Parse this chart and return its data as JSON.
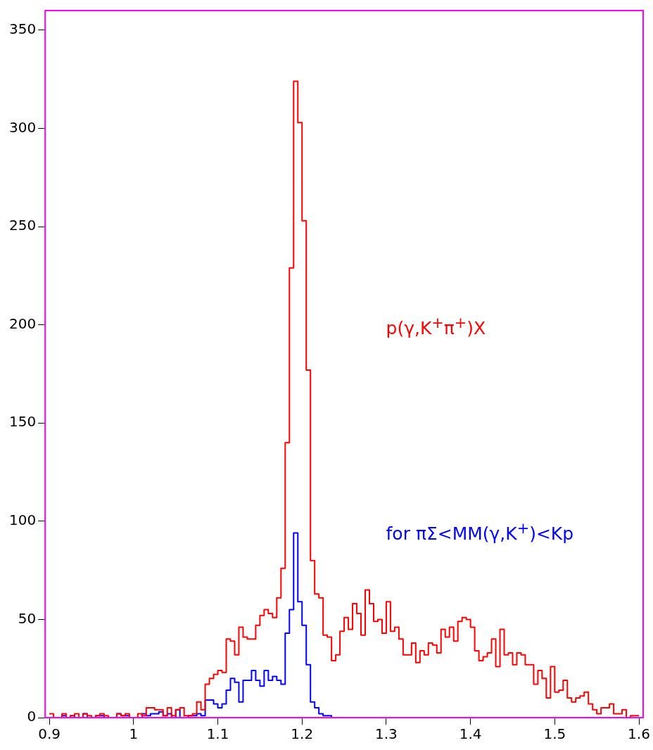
{
  "chart_data": {
    "type": "histogram",
    "bins": [
      0.9,
      0.905,
      0.91,
      0.915,
      0.92,
      0.925,
      0.93,
      0.935,
      0.94,
      0.945,
      0.95,
      0.955,
      0.96,
      0.965,
      0.97,
      0.975,
      0.98,
      0.985,
      0.99,
      0.995,
      1,
      1.005,
      1.01,
      1.015,
      1.02,
      1.025,
      1.03,
      1.035,
      1.04,
      1.045,
      1.05,
      1.055,
      1.06,
      1.065,
      1.07,
      1.075,
      1.08,
      1.085,
      1.09,
      1.095,
      1.1,
      1.105,
      1.11,
      1.115,
      1.12,
      1.125,
      1.13,
      1.135,
      1.14,
      1.145,
      1.15,
      1.155,
      1.16,
      1.165,
      1.17,
      1.175,
      1.18,
      1.185,
      1.19,
      1.195,
      1.2,
      1.205,
      1.21,
      1.215,
      1.22,
      1.225,
      1.23,
      1.235,
      1.24,
      1.245,
      1.25,
      1.255,
      1.26,
      1.265,
      1.27,
      1.275,
      1.28,
      1.285,
      1.29,
      1.295,
      1.3,
      1.305,
      1.31,
      1.315,
      1.32,
      1.325,
      1.33,
      1.335,
      1.34,
      1.345,
      1.35,
      1.355,
      1.36,
      1.365,
      1.37,
      1.375,
      1.38,
      1.385,
      1.39,
      1.395,
      1.4,
      1.405,
      1.41,
      1.415,
      1.42,
      1.425,
      1.43,
      1.435,
      1.44,
      1.445,
      1.45,
      1.455,
      1.46,
      1.465,
      1.47,
      1.475,
      1.48,
      1.485,
      1.49,
      1.495,
      1.5,
      1.505,
      1.51,
      1.515,
      1.52,
      1.525,
      1.53,
      1.535,
      1.54,
      1.545,
      1.55,
      1.555,
      1.56,
      1.565,
      1.57,
      1.575,
      1.58,
      1.585,
      1.59,
      1.595,
      1.6
    ],
    "series": [
      {
        "name": "p(γ,K$^{+}$π$^{+}$)X",
        "color": "#ff0000",
        "values": [
          2,
          0,
          0,
          2,
          0,
          1,
          2,
          0,
          2,
          1,
          0,
          1,
          2,
          1,
          0,
          0,
          2,
          1,
          2,
          0,
          0,
          2,
          1,
          5,
          5,
          4,
          4,
          1,
          5,
          1,
          4,
          5,
          1,
          1,
          2,
          8,
          4,
          17,
          20,
          22,
          24,
          23,
          40,
          39,
          32,
          46,
          41,
          40,
          40,
          47,
          52,
          55,
          53,
          51,
          61,
          76,
          140,
          229,
          324,
          303,
          253,
          177,
          80,
          63,
          61,
          42,
          41,
          29,
          32,
          44,
          51,
          45,
          58,
          53,
          42,
          65,
          58,
          49,
          50,
          43,
          59,
          44,
          46,
          40,
          32,
          32,
          38,
          28,
          34,
          32,
          38,
          37,
          33,
          45,
          41,
          46,
          39,
          49,
          51,
          50,
          46,
          34,
          29,
          31,
          33,
          40,
          26,
          45,
          32,
          33,
          27,
          33,
          32,
          27,
          27,
          17,
          24,
          20,
          10,
          26,
          13,
          14,
          19,
          10,
          8,
          10,
          11,
          13,
          7,
          4,
          2,
          5,
          5,
          7,
          2,
          2,
          4,
          0,
          1,
          1
        ]
      },
      {
        "name": "for πΣ<MM(γ,K$^{+}$)<Kp",
        "color": "#0000ff",
        "values": [
          0,
          0,
          0,
          1,
          0,
          1,
          0,
          0,
          2,
          0,
          0,
          1,
          1,
          0,
          0,
          0,
          2,
          1,
          1,
          0,
          0,
          0,
          2,
          1,
          2,
          2,
          3,
          1,
          2,
          0,
          4,
          0,
          0,
          1,
          1,
          2,
          1,
          9,
          9,
          7,
          5,
          7,
          14,
          20,
          18,
          8,
          19,
          19,
          24,
          19,
          16,
          24,
          19,
          21,
          19,
          17,
          43,
          55,
          94,
          59,
          47,
          27,
          8,
          5,
          2,
          1,
          1,
          0,
          0,
          0,
          0,
          0,
          0,
          0,
          0,
          0,
          0,
          0,
          0,
          0,
          0,
          0,
          0,
          0,
          0,
          0,
          0,
          0,
          0,
          0,
          0,
          0,
          0,
          0,
          0,
          0,
          0,
          0,
          0,
          0,
          0,
          0,
          0,
          0,
          0,
          0,
          0,
          0,
          0,
          0,
          0,
          0,
          0,
          0,
          0,
          0,
          0,
          0,
          0,
          0,
          0,
          0,
          0,
          0,
          0,
          0,
          0,
          0,
          0,
          0,
          0,
          0,
          0,
          0,
          0,
          0,
          0,
          0,
          0,
          0
        ]
      }
    ],
    "xlim": [
      0.895,
      1.605
    ],
    "xticks": [
      0.9,
      1,
      1.1,
      1.2,
      1.3,
      1.4,
      1.5,
      1.6
    ],
    "ylim": [
      0,
      360
    ],
    "yticks": [
      0,
      50,
      100,
      150,
      200,
      250,
      300,
      350
    ],
    "grid": false
  }
}
